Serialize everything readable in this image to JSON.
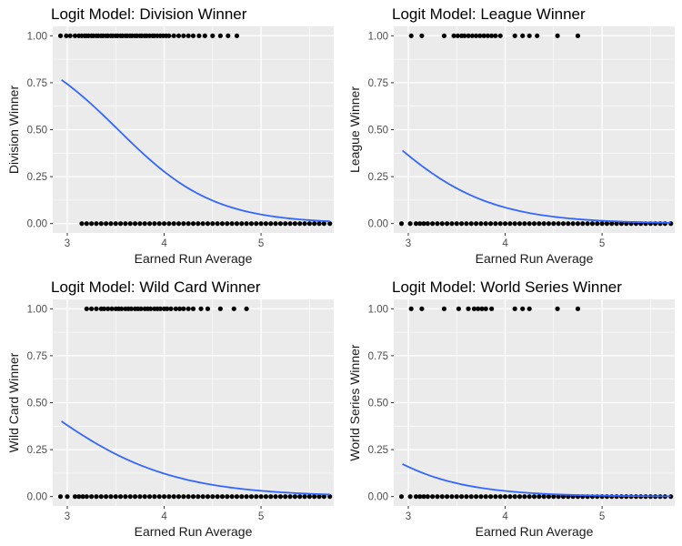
{
  "colors": {
    "panel_bg": "#ebebeb",
    "grid_major": "#ffffff",
    "point": "#000000",
    "curve": "#3366ff",
    "tick_text": "#4d4d4d"
  },
  "chart_data": [
    {
      "type": "scatter",
      "title": "Logit Model: Division Winner",
      "xlabel": "Earned Run Average",
      "ylabel": "Division Winner",
      "xlim": [
        2.85,
        5.75
      ],
      "ylim": [
        -0.05,
        1.05
      ],
      "x_ticks": [
        "3",
        "4",
        "5"
      ],
      "y_ticks": [
        "0.00",
        "0.25",
        "0.50",
        "0.75",
        "1.00"
      ],
      "grid": true,
      "series": [
        {
          "kind": "points",
          "y": 1,
          "x": [
            2.93,
            2.99,
            3.03,
            3.08,
            3.12,
            3.15,
            3.18,
            3.2,
            3.22,
            3.25,
            3.27,
            3.3,
            3.32,
            3.35,
            3.37,
            3.4,
            3.42,
            3.45,
            3.47,
            3.5,
            3.52,
            3.55,
            3.57,
            3.6,
            3.62,
            3.65,
            3.67,
            3.7,
            3.72,
            3.75,
            3.77,
            3.8,
            3.82,
            3.85,
            3.88,
            3.9,
            3.93,
            3.96,
            3.99,
            4.02,
            4.05,
            4.1,
            4.15,
            4.2,
            4.25,
            4.3,
            4.36,
            4.42,
            4.5,
            4.58,
            4.66,
            4.75
          ]
        },
        {
          "kind": "points",
          "y": 0,
          "x": [
            3.15,
            3.2,
            3.25,
            3.3,
            3.35,
            3.4,
            3.45,
            3.5,
            3.55,
            3.6,
            3.65,
            3.7,
            3.75,
            3.8,
            3.85,
            3.9,
            3.95,
            4.0,
            4.05,
            4.1,
            4.15,
            4.2,
            4.25,
            4.3,
            4.35,
            4.4,
            4.45,
            4.5,
            4.55,
            4.6,
            4.65,
            4.7,
            4.75,
            4.8,
            4.85,
            4.9,
            4.95,
            5.0,
            5.05,
            5.1,
            5.15,
            5.2,
            5.25,
            5.3,
            5.35,
            5.4,
            5.45,
            5.5,
            5.55,
            5.6,
            5.65,
            5.71
          ]
        },
        {
          "kind": "logit_curve",
          "x_range": [
            2.94,
            5.71
          ],
          "intercept": 7.12,
          "slope": -2.02
        }
      ]
    },
    {
      "type": "scatter",
      "title": "Logit Model: League Winner",
      "xlabel": "Earned Run Average",
      "ylabel": "League Winner",
      "xlim": [
        2.85,
        5.75
      ],
      "ylim": [
        -0.05,
        1.05
      ],
      "x_ticks": [
        "3",
        "4",
        "5"
      ],
      "y_ticks": [
        "0.00",
        "0.25",
        "0.50",
        "0.75",
        "1.00"
      ],
      "grid": true,
      "series": [
        {
          "kind": "points",
          "y": 1,
          "x": [
            3.03,
            3.14,
            3.37,
            3.47,
            3.51,
            3.55,
            3.58,
            3.62,
            3.66,
            3.7,
            3.74,
            3.78,
            3.82,
            3.86,
            3.9,
            3.95,
            4.1,
            4.18,
            4.25,
            4.33,
            4.54,
            4.75
          ]
        },
        {
          "kind": "points",
          "y": 0,
          "x": [
            2.93,
            3.02,
            3.08,
            3.12,
            3.16,
            3.2,
            3.25,
            3.3,
            3.35,
            3.4,
            3.45,
            3.5,
            3.55,
            3.6,
            3.65,
            3.7,
            3.75,
            3.8,
            3.85,
            3.9,
            3.95,
            4.0,
            4.05,
            4.1,
            4.15,
            4.2,
            4.25,
            4.3,
            4.35,
            4.4,
            4.45,
            4.5,
            4.55,
            4.6,
            4.65,
            4.7,
            4.75,
            4.8,
            4.85,
            4.9,
            4.95,
            5.0,
            5.05,
            5.1,
            5.15,
            5.2,
            5.25,
            5.3,
            5.35,
            5.4,
            5.45,
            5.5,
            5.55,
            5.6,
            5.65,
            5.71
          ]
        },
        {
          "kind": "logit_curve",
          "x_range": [
            2.94,
            5.71
          ],
          "intercept": 4.87,
          "slope": -1.81
        }
      ]
    },
    {
      "type": "scatter",
      "title": "Logit Model: Wild Card Winner",
      "xlabel": "Earned Run Average",
      "ylabel": "Wild Card Winner",
      "xlim": [
        2.85,
        5.75
      ],
      "ylim": [
        -0.05,
        1.05
      ],
      "x_ticks": [
        "3",
        "4",
        "5"
      ],
      "y_ticks": [
        "0.00",
        "0.25",
        "0.50",
        "0.75",
        "1.00"
      ],
      "grid": true,
      "series": [
        {
          "kind": "points",
          "y": 1,
          "x": [
            3.2,
            3.25,
            3.3,
            3.35,
            3.38,
            3.42,
            3.46,
            3.5,
            3.53,
            3.56,
            3.6,
            3.63,
            3.66,
            3.7,
            3.73,
            3.76,
            3.8,
            3.83,
            3.86,
            3.9,
            3.93,
            3.96,
            4.0,
            4.03,
            4.07,
            4.12,
            4.16,
            4.2,
            4.25,
            4.3,
            4.38,
            4.45,
            4.58,
            4.72,
            4.85
          ]
        },
        {
          "kind": "points",
          "y": 0,
          "x": [
            2.93,
            3.0,
            3.08,
            3.12,
            3.16,
            3.2,
            3.25,
            3.3,
            3.35,
            3.4,
            3.45,
            3.5,
            3.55,
            3.6,
            3.65,
            3.7,
            3.75,
            3.8,
            3.85,
            3.9,
            3.95,
            4.0,
            4.05,
            4.1,
            4.15,
            4.2,
            4.25,
            4.3,
            4.35,
            4.4,
            4.45,
            4.5,
            4.55,
            4.6,
            4.65,
            4.7,
            4.75,
            4.8,
            4.85,
            4.9,
            4.95,
            5.0,
            5.05,
            5.1,
            5.15,
            5.2,
            5.25,
            5.3,
            5.35,
            5.4,
            5.45,
            5.5,
            5.55,
            5.6,
            5.65,
            5.71
          ]
        },
        {
          "kind": "logit_curve",
          "x_range": [
            2.94,
            5.71
          ],
          "intercept": 3.95,
          "slope": -1.48
        }
      ]
    },
    {
      "type": "scatter",
      "title": "Logit Model: World Series Winner",
      "xlabel": "Earned Run Average",
      "ylabel": "World Series Winner",
      "xlim": [
        2.85,
        5.75
      ],
      "ylim": [
        -0.05,
        1.05
      ],
      "x_ticks": [
        "3",
        "4",
        "5"
      ],
      "y_ticks": [
        "0.00",
        "0.25",
        "0.50",
        "0.75",
        "1.00"
      ],
      "grid": true,
      "series": [
        {
          "kind": "points",
          "y": 1,
          "x": [
            3.03,
            3.14,
            3.37,
            3.52,
            3.62,
            3.68,
            3.72,
            3.76,
            3.8,
            3.86,
            4.1,
            4.18,
            4.25,
            4.54,
            4.75
          ]
        },
        {
          "kind": "points",
          "y": 0,
          "x": [
            2.93,
            3.02,
            3.08,
            3.12,
            3.16,
            3.2,
            3.25,
            3.3,
            3.35,
            3.4,
            3.45,
            3.5,
            3.55,
            3.6,
            3.65,
            3.7,
            3.75,
            3.8,
            3.85,
            3.9,
            3.95,
            4.0,
            4.05,
            4.1,
            4.15,
            4.2,
            4.25,
            4.3,
            4.35,
            4.4,
            4.45,
            4.5,
            4.55,
            4.6,
            4.65,
            4.7,
            4.75,
            4.8,
            4.85,
            4.9,
            4.95,
            5.0,
            5.05,
            5.1,
            5.15,
            5.2,
            5.25,
            5.3,
            5.35,
            5.4,
            5.45,
            5.5,
            5.55,
            5.6,
            5.65,
            5.71
          ]
        },
        {
          "kind": "logit_curve",
          "x_range": [
            2.94,
            5.71
          ],
          "intercept": 3.76,
          "slope": -1.81
        }
      ]
    }
  ]
}
